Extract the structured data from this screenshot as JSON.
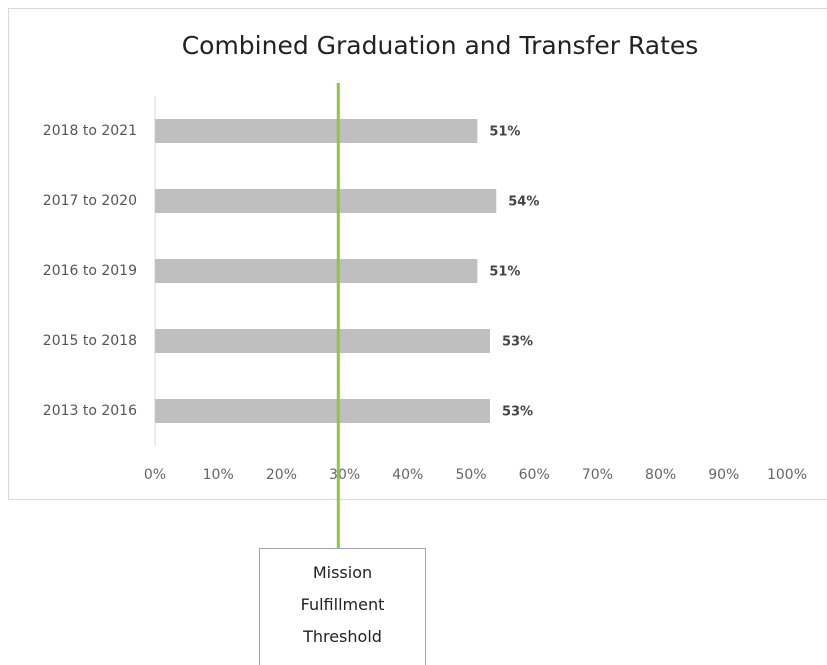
{
  "chart_data": {
    "type": "bar",
    "orientation": "horizontal",
    "title": "Combined Graduation and Transfer Rates",
    "categories": [
      "2018 to 2021",
      "2017 to 2020",
      "2016 to 2019",
      "2015 to 2018",
      "2013 to 2016"
    ],
    "values": [
      51,
      54,
      51,
      53,
      53
    ],
    "value_labels": [
      "51%",
      "54%",
      "51%",
      "53%",
      "53%"
    ],
    "color": "#bfbfbf",
    "xlim": [
      0,
      100
    ],
    "xticks": [
      {
        "value": 0,
        "label": "0%"
      },
      {
        "value": 10,
        "label": "10%"
      },
      {
        "value": 20,
        "label": "20%"
      },
      {
        "value": 30,
        "label": "30%"
      },
      {
        "value": 40,
        "label": "40%"
      },
      {
        "value": 50,
        "label": "50%"
      },
      {
        "value": 60,
        "label": "60%"
      },
      {
        "value": 70,
        "label": "70%"
      },
      {
        "value": 80,
        "label": "80%"
      },
      {
        "value": 90,
        "label": "90%"
      },
      {
        "value": 100,
        "label": "100%"
      }
    ],
    "grid": false,
    "threshold": {
      "value": 29,
      "label": "Mission Fulfillment Threshold",
      "color": "#8dc63f"
    }
  }
}
